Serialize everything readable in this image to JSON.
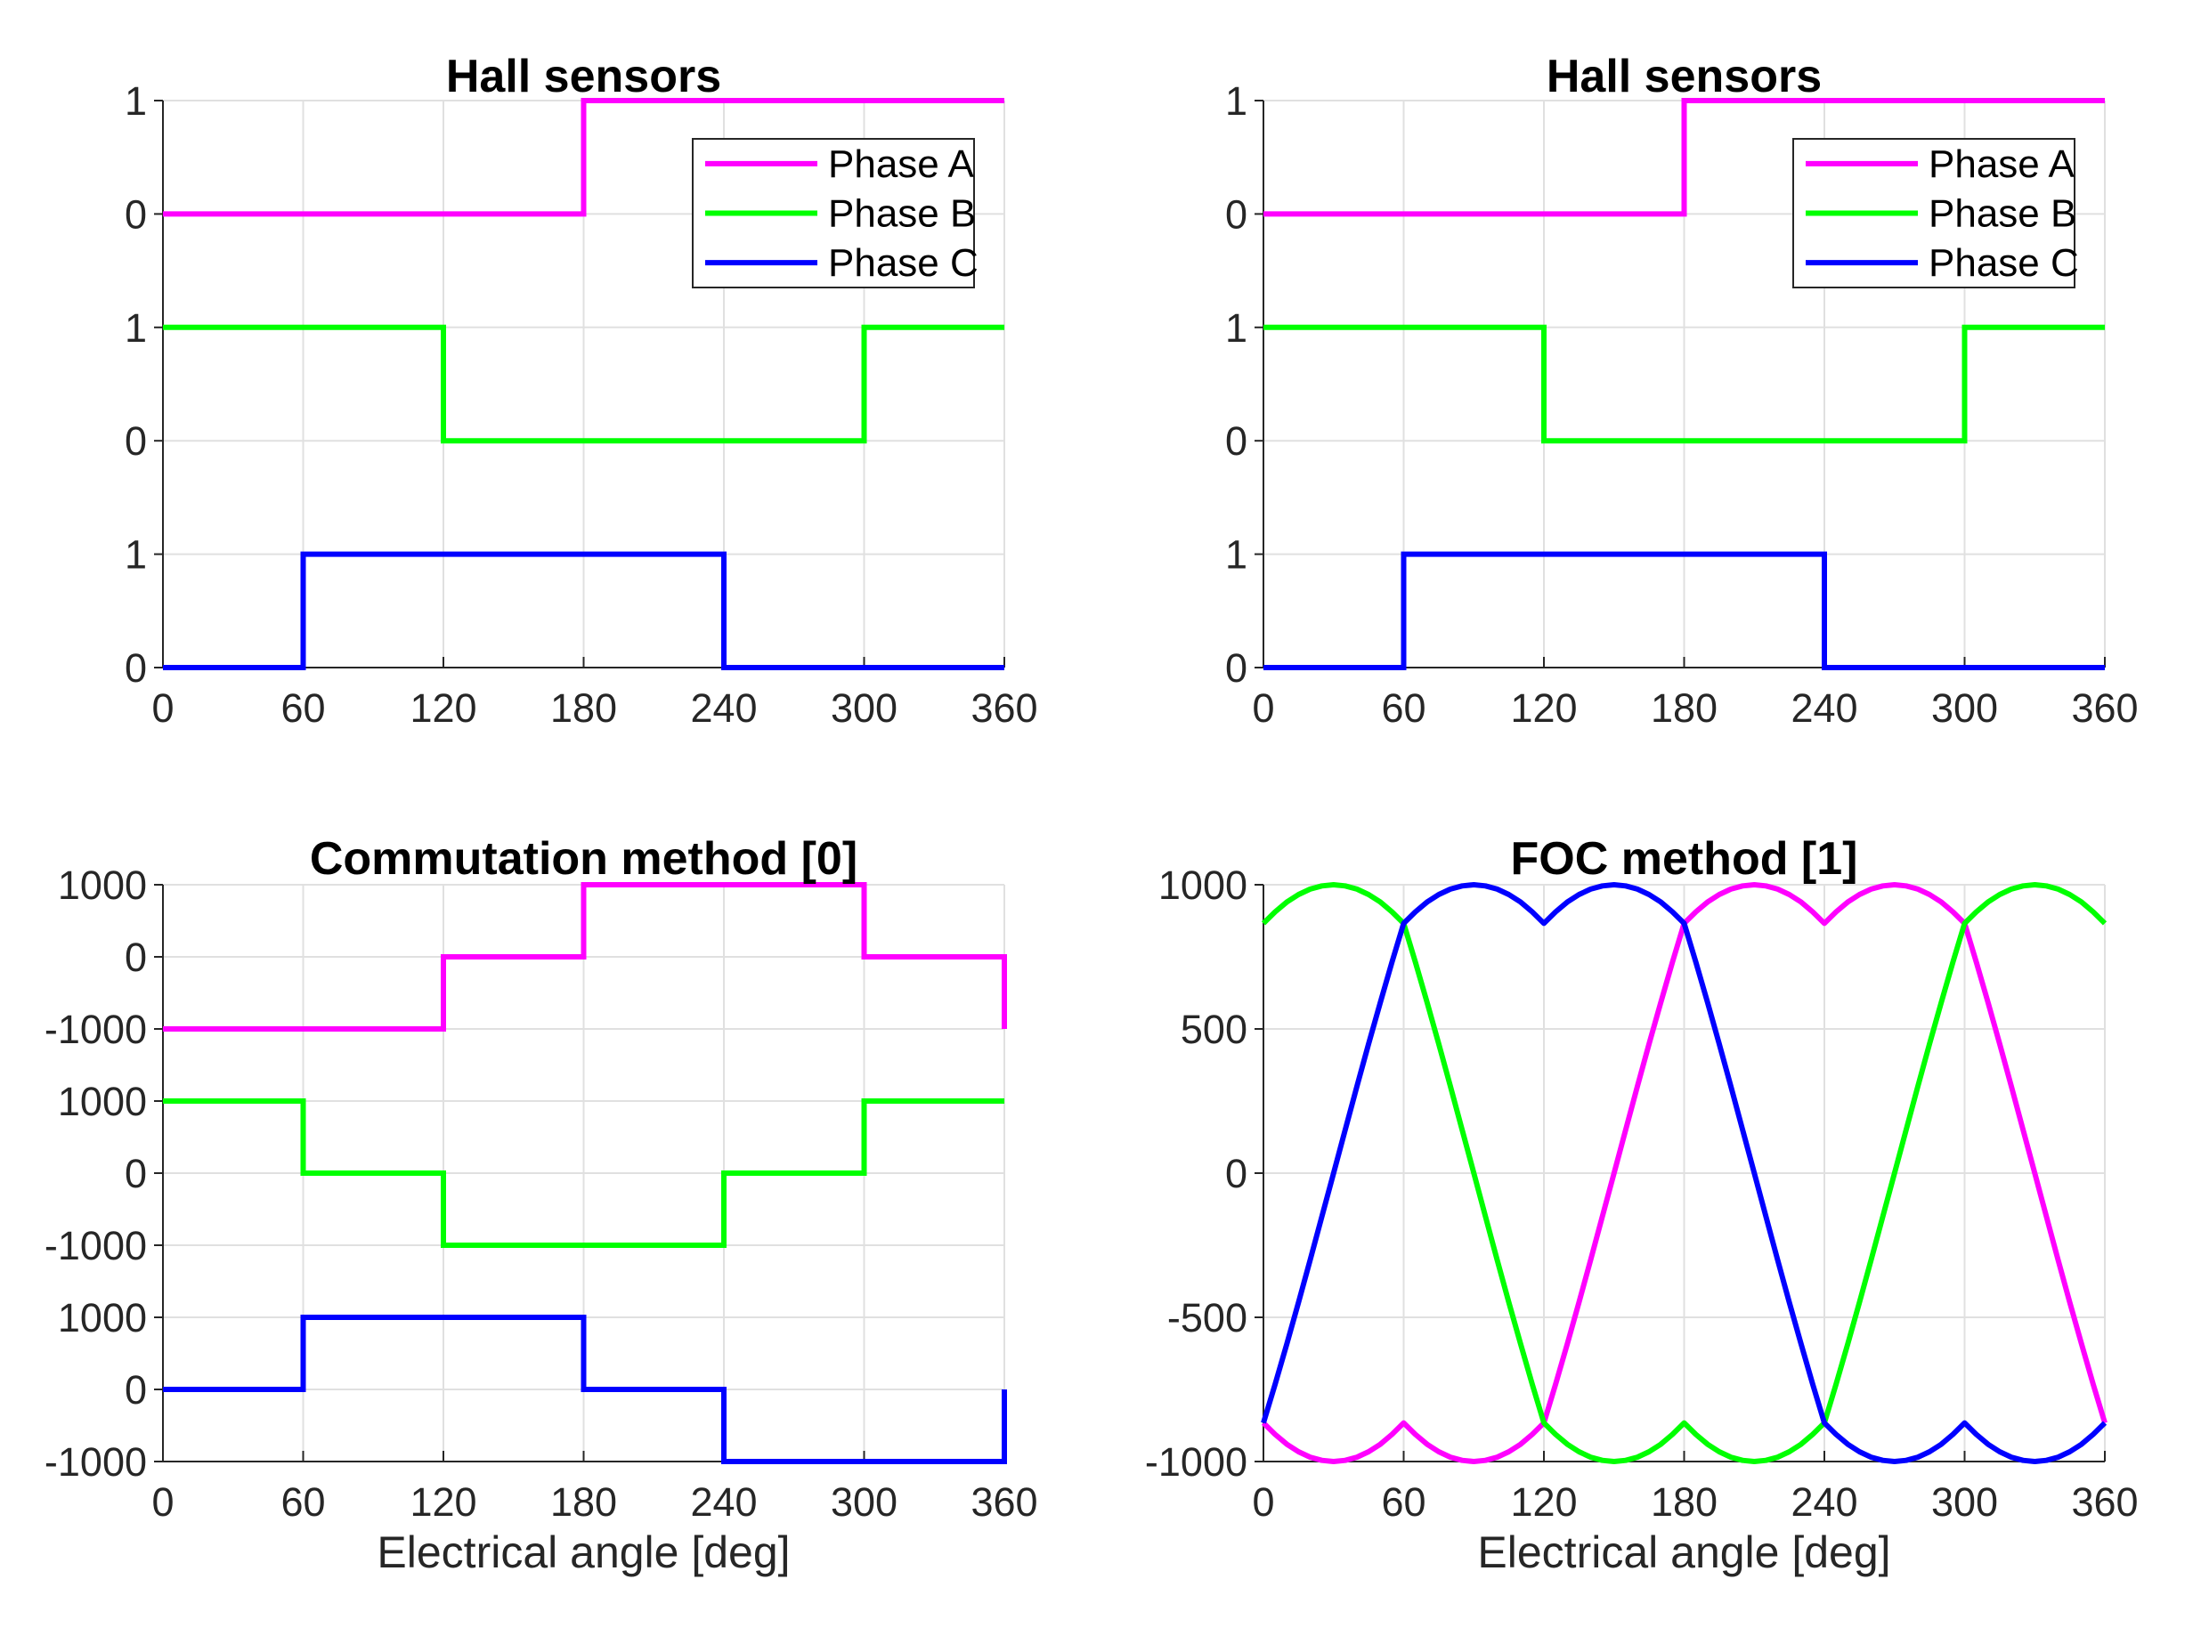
{
  "figure": {
    "background": "#FFFFFF"
  },
  "style": {
    "phase_a_color": "#FF00FF",
    "phase_b_color": "#00FF00",
    "phase_c_color": "#0000FF",
    "axis_color": "#262626",
    "grid_color": "#E0E0E0",
    "tick_text_color": "#262626",
    "title_color": "#000000"
  },
  "chart_data": [
    {
      "type": "line",
      "title": "Hall sensors",
      "xlabel": "",
      "xlim": [
        0,
        360
      ],
      "x_ticks": [
        0,
        60,
        120,
        180,
        240,
        300,
        360
      ],
      "ylim": [
        0,
        5
      ],
      "y_ticks": [
        {
          "v": 0,
          "label": "0"
        },
        {
          "v": 1,
          "label": "1"
        },
        {
          "v": 2,
          "label": "0"
        },
        {
          "v": 3,
          "label": "1"
        },
        {
          "v": 4,
          "label": "0"
        },
        {
          "v": 5,
          "label": "1"
        }
      ],
      "grid": true,
      "legend": {
        "visible": true,
        "location": "northeast-inside",
        "entries": [
          "Phase A",
          "Phase B",
          "Phase C"
        ]
      },
      "series": [
        {
          "name": "Phase A",
          "color": "#FF00FF",
          "kind": "steps",
          "offset": 4,
          "scale": 1,
          "steps": [
            [
              0,
              0
            ],
            [
              180,
              1
            ]
          ]
        },
        {
          "name": "Phase B",
          "color": "#00FF00",
          "kind": "steps",
          "offset": 2,
          "scale": 1,
          "steps": [
            [
              0,
              1
            ],
            [
              120,
              0
            ],
            [
              300,
              1
            ]
          ]
        },
        {
          "name": "Phase C",
          "color": "#0000FF",
          "kind": "steps",
          "offset": 0,
          "scale": 1,
          "steps": [
            [
              0,
              0
            ],
            [
              60,
              1
            ],
            [
              240,
              0
            ]
          ]
        }
      ]
    },
    {
      "type": "line",
      "title": "Hall sensors",
      "xlabel": "",
      "xlim": [
        0,
        360
      ],
      "x_ticks": [
        0,
        60,
        120,
        180,
        240,
        300,
        360
      ],
      "ylim": [
        0,
        5
      ],
      "y_ticks": [
        {
          "v": 0,
          "label": "0"
        },
        {
          "v": 1,
          "label": "1"
        },
        {
          "v": 2,
          "label": "0"
        },
        {
          "v": 3,
          "label": "1"
        },
        {
          "v": 4,
          "label": "0"
        },
        {
          "v": 5,
          "label": "1"
        }
      ],
      "grid": true,
      "legend": {
        "visible": true,
        "location": "northeast-inside",
        "entries": [
          "Phase A",
          "Phase B",
          "Phase C"
        ]
      },
      "series": [
        {
          "name": "Phase A",
          "color": "#FF00FF",
          "kind": "steps",
          "offset": 4,
          "scale": 1,
          "steps": [
            [
              0,
              0
            ],
            [
              180,
              1
            ]
          ]
        },
        {
          "name": "Phase B",
          "color": "#00FF00",
          "kind": "steps",
          "offset": 2,
          "scale": 1,
          "steps": [
            [
              0,
              1
            ],
            [
              120,
              0
            ],
            [
              300,
              1
            ]
          ]
        },
        {
          "name": "Phase C",
          "color": "#0000FF",
          "kind": "steps",
          "offset": 0,
          "scale": 1,
          "steps": [
            [
              0,
              0
            ],
            [
              60,
              1
            ],
            [
              240,
              0
            ]
          ]
        }
      ]
    },
    {
      "type": "line",
      "title": "Commutation method [0]",
      "xlabel": "Electrical angle [deg]",
      "xlim": [
        0,
        360
      ],
      "x_ticks": [
        0,
        60,
        120,
        180,
        240,
        300,
        360
      ],
      "ylim": [
        0,
        8
      ],
      "y_ticks": [
        {
          "v": 0,
          "label": "-1000"
        },
        {
          "v": 1,
          "label": "0"
        },
        {
          "v": 2,
          "label": "1000"
        },
        {
          "v": 3,
          "label": "-1000"
        },
        {
          "v": 4,
          "label": "0"
        },
        {
          "v": 5,
          "label": "1000"
        },
        {
          "v": 6,
          "label": "-1000"
        },
        {
          "v": 7,
          "label": "0"
        },
        {
          "v": 8,
          "label": "1000"
        }
      ],
      "grid": true,
      "legend": {
        "visible": false
      },
      "series": [
        {
          "name": "Phase A",
          "color": "#FF00FF",
          "kind": "steps",
          "offset": 7,
          "scale": 0.001,
          "steps": [
            [
              0,
              -1000
            ],
            [
              120,
              0
            ],
            [
              180,
              1000
            ],
            [
              300,
              0
            ],
            [
              360,
              -1000
            ]
          ]
        },
        {
          "name": "Phase B",
          "color": "#00FF00",
          "kind": "steps",
          "offset": 4,
          "scale": 0.001,
          "steps": [
            [
              0,
              1000
            ],
            [
              60,
              0
            ],
            [
              120,
              -1000
            ],
            [
              240,
              0
            ],
            [
              300,
              1000
            ]
          ]
        },
        {
          "name": "Phase C",
          "color": "#0000FF",
          "kind": "steps",
          "offset": 1,
          "scale": 0.001,
          "steps": [
            [
              0,
              0
            ],
            [
              60,
              1000
            ],
            [
              180,
              0
            ],
            [
              240,
              -1000
            ],
            [
              360,
              0
            ]
          ]
        }
      ]
    },
    {
      "type": "line",
      "title": "FOC method [1]",
      "xlabel": "Electrical angle [deg]",
      "xlim": [
        0,
        360
      ],
      "x_ticks": [
        0,
        60,
        120,
        180,
        240,
        300,
        360
      ],
      "ylim": [
        -1000,
        1000
      ],
      "y_ticks": [
        {
          "v": -1000,
          "label": "-1000"
        },
        {
          "v": -500,
          "label": "-500"
        },
        {
          "v": 0,
          "label": "0"
        },
        {
          "v": 500,
          "label": "500"
        },
        {
          "v": 1000,
          "label": "1000"
        }
      ],
      "grid": true,
      "legend": {
        "visible": false
      },
      "x": [
        0,
        5,
        10,
        15,
        20,
        25,
        30,
        35,
        40,
        45,
        50,
        55,
        60,
        65,
        70,
        75,
        80,
        85,
        90,
        95,
        100,
        105,
        110,
        115,
        120,
        125,
        130,
        135,
        140,
        145,
        150,
        155,
        160,
        165,
        170,
        175,
        180,
        185,
        190,
        195,
        200,
        205,
        210,
        215,
        220,
        225,
        230,
        235,
        240,
        245,
        250,
        255,
        260,
        265,
        270,
        275,
        280,
        285,
        290,
        295,
        300,
        305,
        310,
        315,
        320,
        325,
        330,
        335,
        340,
        345,
        350,
        355,
        360
      ],
      "series": [
        {
          "name": "Phase A",
          "color": "#FF00FF",
          "kind": "samples",
          "values": [
            -866,
            -906,
            -940,
            -966,
            -985,
            -996,
            -1000,
            -996,
            -985,
            -966,
            -940,
            -906,
            -866,
            -906,
            -940,
            -966,
            -985,
            -996,
            -1000,
            -996,
            -985,
            -966,
            -940,
            -906,
            -866,
            -732,
            -592,
            -448,
            -301,
            -151,
            0,
            151,
            301,
            448,
            592,
            732,
            866,
            906,
            940,
            966,
            985,
            996,
            1000,
            996,
            985,
            966,
            940,
            906,
            866,
            906,
            940,
            966,
            985,
            996,
            1000,
            996,
            985,
            966,
            940,
            906,
            866,
            732,
            592,
            448,
            301,
            151,
            0,
            -151,
            -301,
            -448,
            -592,
            -732,
            -866
          ]
        },
        {
          "name": "Phase B",
          "color": "#00FF00",
          "kind": "samples",
          "values": [
            866,
            906,
            940,
            966,
            985,
            996,
            1000,
            996,
            985,
            966,
            940,
            906,
            866,
            732,
            592,
            448,
            301,
            151,
            0,
            -151,
            -301,
            -448,
            -592,
            -732,
            -866,
            -906,
            -940,
            -966,
            -985,
            -996,
            -1000,
            -996,
            -985,
            -966,
            -940,
            -906,
            -866,
            -906,
            -940,
            -966,
            -985,
            -996,
            -1000,
            -996,
            -985,
            -966,
            -940,
            -906,
            -866,
            -732,
            -592,
            -448,
            -301,
            -151,
            0,
            151,
            301,
            448,
            592,
            732,
            866,
            906,
            940,
            966,
            985,
            996,
            1000,
            996,
            985,
            966,
            940,
            906,
            866
          ]
        },
        {
          "name": "Phase C",
          "color": "#0000FF",
          "kind": "samples",
          "values": [
            -866,
            -732,
            -592,
            -448,
            -301,
            -151,
            0,
            151,
            301,
            448,
            592,
            732,
            866,
            906,
            940,
            966,
            985,
            996,
            1000,
            996,
            985,
            966,
            940,
            906,
            866,
            906,
            940,
            966,
            985,
            996,
            1000,
            996,
            985,
            966,
            940,
            906,
            866,
            732,
            592,
            448,
            301,
            151,
            0,
            -151,
            -301,
            -448,
            -592,
            -732,
            -866,
            -906,
            -940,
            -966,
            -985,
            -996,
            -1000,
            -996,
            -985,
            -966,
            -940,
            -906,
            -866,
            -906,
            -940,
            -966,
            -985,
            -996,
            -1000,
            -996,
            -985,
            -966,
            -940,
            -906,
            -866
          ]
        }
      ]
    }
  ]
}
